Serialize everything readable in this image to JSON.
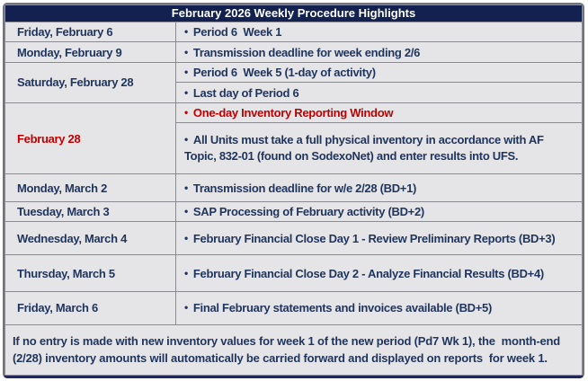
{
  "ui": {
    "bullet": "•"
  },
  "colors": {
    "header_bg": "#12214f",
    "text_navy": "#1f355e",
    "alert_red": "#c00000",
    "cell_bg": "#e5e4e7",
    "border_gray": "#8a8a90"
  },
  "header": {
    "title": "February 2026 Weekly Procedure Highlights"
  },
  "rows": [
    {
      "date": "Friday, February 6",
      "items": [
        "Period 6  Week 1"
      ]
    },
    {
      "date": "Monday, February 9",
      "items": [
        "Transmission deadline for week ending 2/6"
      ]
    },
    {
      "date": "Saturday, February 28",
      "items": [
        "Period 6  Week 5 (1-day of activity)",
        "Last day of Period 6"
      ]
    },
    {
      "date": "February 28",
      "items": [
        "One-day Inventory Reporting Window",
        "All Units must take a full physical inventory in accordance with AF Topic, 832-01 (found on SodexoNet) and enter results into UFS."
      ]
    },
    {
      "date": "Monday, March 2",
      "items": [
        "Transmission deadline for w/e 2/28 (BD+1)"
      ]
    },
    {
      "date": "Tuesday, March 3",
      "items": [
        "SAP Processing of February activity (BD+2)"
      ]
    },
    {
      "date": "Wednesday, March 4",
      "items": [
        "February Financial Close Day 1 - Review Preliminary Reports (BD+3)"
      ]
    },
    {
      "date": "Thursday, March 5",
      "items": [
        "February Financial Close Day 2 - Analyze Financial Results (BD+4)"
      ]
    },
    {
      "date": "Friday, March 6",
      "items": [
        "Final February statements and invoices available (BD+5)"
      ]
    }
  ],
  "footer": {
    "note": "If no entry is made with new inventory values for week 1 of the new period (Pd7 Wk 1), the  month-end (2/28) inventory amounts will automatically be carried forward and displayed on reports  for week 1."
  }
}
